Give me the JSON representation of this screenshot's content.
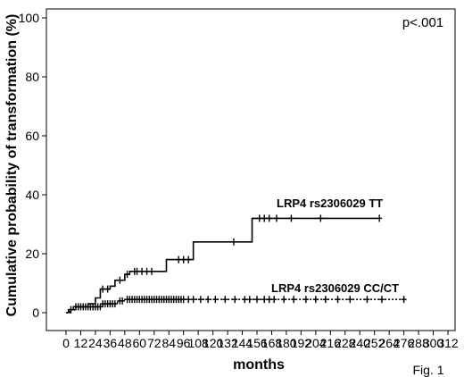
{
  "chart_data": {
    "type": "line",
    "title": "",
    "xlabel": "months",
    "ylabel": "Cumulative probability of transformation (%)",
    "xlim": [
      0,
      312
    ],
    "ylim": [
      0,
      100
    ],
    "x_ticks": [
      "0",
      "12",
      "24",
      "36",
      "48",
      "60",
      "72",
      "84",
      "96",
      "108",
      "120",
      "132",
      "144",
      "156",
      "168",
      "180",
      "192",
      "204",
      "216",
      "228",
      "240",
      "252",
      "264",
      "276",
      "288",
      "300",
      "312"
    ],
    "y_ticks": [
      "0",
      "20",
      "40",
      "60",
      "80",
      "100"
    ],
    "grid": false,
    "annotation": "p<.001",
    "figure_label": "Fig. 1",
    "series": [
      {
        "name": "LRP4 rs2306029 TT",
        "style": "solid",
        "steps": [
          [
            0,
            0
          ],
          [
            2,
            1
          ],
          [
            6,
            2
          ],
          [
            18,
            3
          ],
          [
            24,
            5
          ],
          [
            28,
            8
          ],
          [
            36,
            9
          ],
          [
            40,
            11
          ],
          [
            48,
            13
          ],
          [
            52,
            14
          ],
          [
            82,
            18
          ],
          [
            104,
            24
          ],
          [
            152,
            32
          ],
          [
            255,
            32
          ]
        ],
        "censored_x": [
          30,
          34,
          44,
          50,
          56,
          58,
          62,
          66,
          70,
          92,
          96,
          100,
          137,
          158,
          162,
          166,
          172,
          184,
          208,
          256
        ]
      },
      {
        "name": "LRP4 rs2306029 CC/CT",
        "style": "dotted",
        "steps": [
          [
            0,
            0
          ],
          [
            3,
            1
          ],
          [
            8,
            2
          ],
          [
            30,
            3
          ],
          [
            42,
            4
          ],
          [
            48,
            4.5
          ],
          [
            276,
            4.5
          ]
        ],
        "censored_x": [
          4,
          8,
          10,
          12,
          14,
          16,
          18,
          20,
          22,
          24,
          26,
          28,
          30,
          32,
          34,
          36,
          38,
          40,
          44,
          46,
          50,
          52,
          54,
          56,
          58,
          60,
          62,
          64,
          66,
          68,
          70,
          72,
          74,
          76,
          78,
          80,
          82,
          84,
          86,
          88,
          90,
          92,
          94,
          96,
          100,
          104,
          110,
          116,
          122,
          130,
          138,
          146,
          150,
          156,
          162,
          166,
          170,
          178,
          186,
          196,
          204,
          212,
          222,
          232,
          246,
          258,
          276
        ]
      }
    ]
  }
}
